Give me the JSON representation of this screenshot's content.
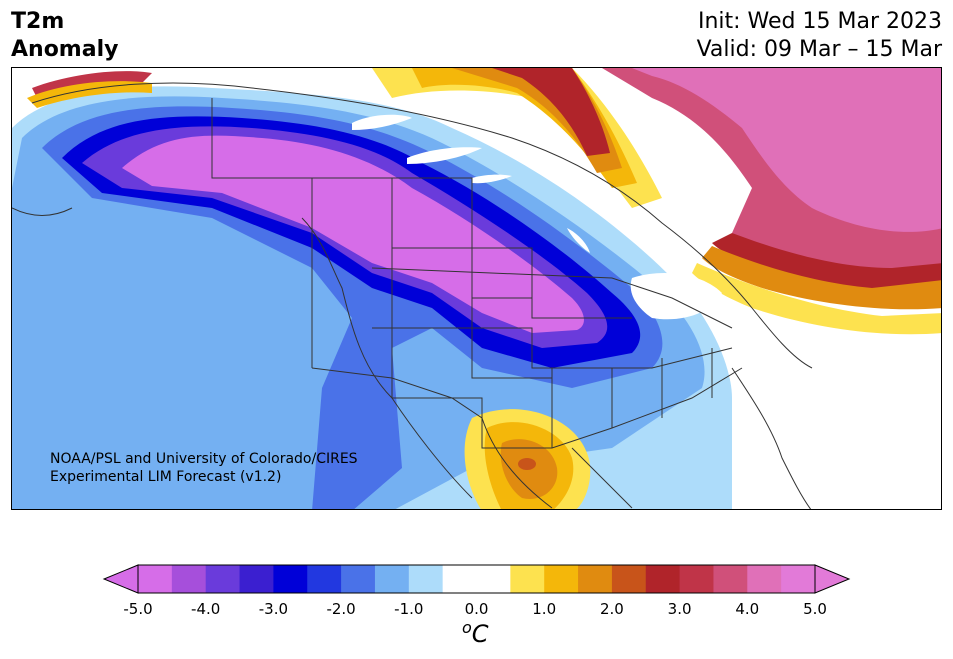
{
  "header": {
    "title_line1": "T2m",
    "title_line2": "Anomaly",
    "init_line": "Init: Wed 15 Mar 2023",
    "valid_line": "Valid: 09 Mar – 15 Mar"
  },
  "credit": {
    "line1": "NOAA/PSL and University of Colorado/CIRES",
    "line2": "Experimental LIM Forecast (v1.2)"
  },
  "colorbar": {
    "unit_base": "C",
    "unit_sup": "o",
    "ticks": [
      "-5.0",
      "-4.0",
      "-3.0",
      "-2.0",
      "-1.0",
      "0.0",
      "1.0",
      "2.0",
      "3.0",
      "4.0",
      "5.0"
    ],
    "colors": [
      "#d66de8",
      "#a64fdb",
      "#6a3bdb",
      "#3b1fd0",
      "#0000d8",
      "#2238e0",
      "#4a72e8",
      "#74b0f2",
      "#addcfa",
      "#ffffff",
      "#ffffff",
      "#fde24f",
      "#f4b70a",
      "#e08b10",
      "#c8541a",
      "#b0242a",
      "#c03448",
      "#d0507a",
      "#e070b8",
      "#e27ad8"
    ],
    "extend_low_color": "#d66de8",
    "extend_high_color": "#e27ad8"
  },
  "map": {
    "region": "North America",
    "overlay_colors": {
      "ocean": "#ffffff",
      "border": "#333333"
    }
  }
}
